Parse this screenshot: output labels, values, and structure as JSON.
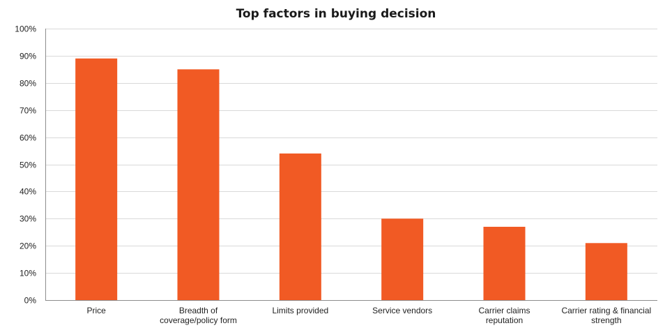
{
  "chart_data": {
    "type": "bar",
    "title": "Top factors in buying decision",
    "categories": [
      "Price",
      "Breadth of coverage/policy form",
      "Limits provided",
      "Service vendors",
      "Carrier claims reputation",
      "Carrier rating & financial strength"
    ],
    "category_label_lines": [
      [
        "Price"
      ],
      [
        "Breadth of",
        "coverage/policy form"
      ],
      [
        "Limits provided"
      ],
      [
        "Service vendors"
      ],
      [
        "Carrier claims",
        "reputation"
      ],
      [
        "Carrier rating & financial",
        "strength"
      ]
    ],
    "values": [
      0.89,
      0.85,
      0.54,
      0.3,
      0.27,
      0.21
    ],
    "ylim": [
      0,
      1.0
    ],
    "yticks": [
      0,
      0.1,
      0.2,
      0.3,
      0.4,
      0.5,
      0.6,
      0.7,
      0.8,
      0.9,
      1.0
    ],
    "ytick_labels": [
      "0%",
      "10%",
      "20%",
      "30%",
      "40%",
      "50%",
      "60%",
      "70%",
      "80%",
      "90%",
      "100%"
    ],
    "xlabel": "",
    "ylabel": "",
    "grid": true,
    "bar_color": "#F15A24",
    "grid_color": "#D9D9D9",
    "axis_color": "#8C8C8C"
  }
}
